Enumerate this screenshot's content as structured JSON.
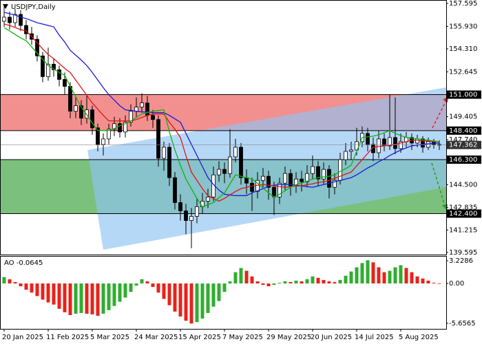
{
  "chart_data": [
    {
      "type": "candlestick",
      "title": "USDJPY,Daily",
      "categories": [
        "20 Jan 2025",
        null,
        null,
        null,
        null,
        null,
        null,
        null,
        "11 Feb 2025",
        null,
        null,
        null,
        null,
        null,
        null,
        null,
        "5 Mar 2025",
        null,
        null,
        null,
        null,
        null,
        null,
        null,
        "24 Mar 2025",
        null,
        null,
        null,
        null,
        null,
        null,
        null,
        "15 Apr 2025",
        null,
        null,
        null,
        null,
        null,
        null,
        null,
        "7 May 2025",
        null,
        null,
        null,
        null,
        null,
        null,
        null,
        "29 May 2025",
        null,
        null,
        null,
        null,
        null,
        null,
        null,
        "20 Jun 2025",
        null,
        null,
        null,
        null,
        null,
        null,
        null,
        "14 Jul 2025",
        null,
        null,
        null,
        null,
        null,
        null,
        null,
        "5 Aug 2025",
        null,
        null,
        null,
        null,
        null,
        null,
        null
      ],
      "open": [
        156.3,
        156.6,
        156.2,
        156.8,
        156.0,
        155.4,
        155.0,
        153.8,
        152.3,
        153.2,
        152.8,
        152.1,
        151.6,
        149.8,
        150.2,
        149.3,
        149.9,
        148.6,
        147.4,
        147.8,
        148.5,
        148.9,
        148.3,
        149.0,
        149.8,
        150.1,
        150.4,
        149.5,
        149.2,
        146.4,
        147.2,
        145.0,
        143.2,
        142.6,
        141.9,
        142.2,
        142.9,
        143.3,
        143.6,
        145.2,
        145.6,
        145.3,
        146.5,
        147.2,
        145.0,
        144.6,
        144.0,
        144.8,
        145.1,
        144.3,
        143.6,
        144.6,
        145.3,
        144.4,
        144.9,
        144.7,
        145.3,
        145.8,
        144.9,
        145.6,
        144.3,
        144.8,
        146.3,
        146.9,
        147.0,
        147.6,
        148.2,
        147.4,
        146.8,
        147.8,
        147.3,
        147.9,
        147.1,
        147.6,
        147.9,
        147.5,
        147.8,
        147.2,
        147.6,
        147.4
      ],
      "high": [
        157.5,
        157.0,
        157.2,
        157.1,
        156.4,
        155.9,
        155.3,
        154.1,
        154.4,
        153.6,
        153.1,
        152.6,
        151.9,
        150.8,
        150.6,
        150.9,
        150.2,
        148.9,
        148.2,
        148.9,
        149.4,
        149.3,
        149.5,
        150.3,
        150.8,
        151.1,
        150.9,
        149.9,
        149.5,
        147.6,
        147.5,
        145.4,
        143.8,
        143.1,
        142.8,
        143.5,
        143.9,
        144.2,
        145.8,
        146.2,
        146.1,
        148.5,
        147.8,
        147.5,
        145.6,
        145.0,
        145.4,
        145.7,
        145.5,
        144.7,
        145.0,
        145.8,
        145.6,
        145.4,
        145.5,
        145.9,
        146.6,
        146.2,
        146.1,
        145.9,
        145.3,
        146.8,
        147.5,
        147.6,
        148.6,
        148.7,
        148.6,
        147.9,
        148.4,
        148.2,
        151.0,
        150.8,
        148.2,
        148.3,
        148.2,
        148.1,
        148.0,
        147.9,
        147.8,
        147.7
      ],
      "low": [
        155.9,
        155.7,
        155.9,
        155.6,
        155.0,
        154.6,
        153.4,
        151.9,
        152.0,
        152.3,
        151.6,
        151.0,
        149.3,
        149.3,
        148.8,
        148.9,
        148.1,
        146.9,
        146.6,
        147.4,
        148.0,
        147.9,
        147.9,
        148.7,
        149.4,
        149.7,
        149.1,
        148.6,
        145.8,
        145.5,
        144.4,
        142.7,
        141.9,
        140.9,
        139.9,
        141.7,
        142.4,
        142.8,
        143.3,
        144.7,
        144.6,
        145.0,
        146.1,
        144.5,
        143.8,
        142.6,
        143.5,
        144.2,
        143.4,
        142.3,
        143.1,
        144.1,
        143.7,
        143.9,
        144.0,
        144.3,
        144.9,
        144.4,
        144.5,
        143.5,
        143.8,
        144.5,
        145.9,
        146.3,
        146.6,
        147.2,
        146.9,
        146.2,
        146.4,
        146.9,
        147.0,
        146.7,
        146.8,
        147.2,
        147.0,
        147.2,
        146.8,
        147.0,
        147.1,
        147.0
      ],
      "close": [
        156.6,
        156.2,
        156.8,
        156.0,
        155.4,
        155.0,
        153.8,
        152.3,
        153.2,
        152.8,
        152.1,
        151.6,
        149.8,
        150.2,
        149.3,
        149.9,
        148.6,
        147.4,
        147.8,
        148.5,
        148.9,
        148.3,
        149.0,
        149.8,
        150.1,
        150.4,
        149.5,
        149.2,
        146.4,
        147.2,
        145.0,
        143.2,
        142.6,
        141.9,
        142.2,
        142.9,
        143.3,
        143.6,
        145.2,
        145.6,
        145.3,
        146.5,
        147.2,
        145.0,
        144.6,
        144.0,
        144.8,
        145.1,
        144.3,
        143.6,
        144.6,
        145.3,
        144.4,
        144.9,
        144.7,
        145.3,
        145.8,
        144.9,
        145.6,
        144.3,
        144.8,
        146.3,
        146.9,
        147.0,
        147.6,
        148.2,
        147.4,
        146.8,
        147.8,
        147.3,
        147.9,
        147.1,
        147.6,
        147.9,
        147.5,
        147.8,
        147.2,
        147.6,
        147.4,
        147.362
      ],
      "up_color": "#ffffff",
      "down_color": "#000000",
      "lines": [
        {
          "color": "#1a1ad6",
          "values": [
            156.95,
            156.85,
            156.75,
            156.6,
            156.5,
            156.35,
            156.2,
            156.1,
            156.0,
            155.9,
            155.3,
            154.8,
            154.2,
            153.85,
            153.5,
            153.1,
            152.6,
            152.05,
            151.5,
            151.0,
            150.6,
            150.2,
            149.9,
            149.85,
            149.8,
            149.75,
            149.75,
            149.7,
            149.7,
            149.7,
            149.5,
            149.25,
            149.0,
            148.2,
            147.4,
            146.6,
            145.8,
            145.0,
            144.5,
            144.1,
            143.8,
            143.75,
            143.7,
            143.7,
            143.7,
            143.9,
            144.05,
            144.2,
            144.4,
            144.45,
            144.5,
            144.5,
            144.5,
            144.45,
            144.4,
            144.35,
            144.3,
            144.4,
            144.5,
            144.6,
            144.7,
            144.8,
            144.9,
            145.0,
            145.2,
            145.45,
            145.7,
            145.9,
            146.15,
            146.35,
            146.6,
            146.8,
            147.0,
            147.15,
            147.3,
            147.35,
            147.4,
            147.45,
            147.48,
            147.5
          ]
        },
        {
          "color": "#e01414",
          "values": [
            156.1,
            156.0,
            155.85,
            155.7,
            155.6,
            155.2,
            154.75,
            154.3,
            153.9,
            153.6,
            153.25,
            152.9,
            152.6,
            152.05,
            151.5,
            150.95,
            150.4,
            149.95,
            149.5,
            149.1,
            149.1,
            149.1,
            149.1,
            149.1,
            149.2,
            149.35,
            149.5,
            149.6,
            149.6,
            149.6,
            149.0,
            148.5,
            147.9,
            146.6,
            145.4,
            144.8,
            144.2,
            143.7,
            143.5,
            143.3,
            143.5,
            143.75,
            144.0,
            144.2,
            144.3,
            144.4,
            144.45,
            144.5,
            144.45,
            144.4,
            144.35,
            144.3,
            144.35,
            144.4,
            144.4,
            144.5,
            144.55,
            144.65,
            144.7,
            144.8,
            144.95,
            145.1,
            145.25,
            145.4,
            145.85,
            146.3,
            146.75,
            147.2,
            147.25,
            147.3,
            147.35,
            147.4,
            147.5,
            147.6,
            147.7,
            147.7,
            147.65,
            147.65,
            147.6,
            147.6
          ]
        },
        {
          "color": "#12b012",
          "values": [
            155.85,
            155.6,
            155.35,
            155.1,
            154.9,
            154.45,
            154.0,
            153.55,
            153.1,
            152.85,
            152.6,
            152.4,
            151.6,
            150.85,
            150.1,
            149.55,
            148.95,
            148.4,
            148.4,
            148.4,
            148.55,
            148.75,
            148.9,
            149.1,
            149.35,
            149.6,
            149.7,
            149.8,
            149.85,
            149.9,
            148.3,
            147.0,
            145.9,
            144.9,
            144.2,
            143.5,
            142.9,
            143.05,
            143.2,
            143.55,
            143.9,
            144.55,
            145.2,
            145.1,
            145.0,
            144.9,
            144.6,
            144.25,
            143.9,
            143.6,
            143.8,
            144.05,
            144.3,
            144.5,
            144.6,
            144.75,
            144.9,
            145.0,
            145.05,
            145.1,
            145.2,
            145.45,
            145.65,
            145.9,
            146.9,
            147.9,
            147.95,
            148.0,
            148.1,
            148.25,
            148.4,
            148.2,
            148.05,
            147.9,
            147.85,
            147.8,
            147.75,
            147.7,
            147.65,
            147.6
          ]
        }
      ],
      "levels": [
        {
          "value": 151.0,
          "label": "151.000"
        },
        {
          "value": 148.4,
          "label": "148.400"
        },
        {
          "value": 146.3,
          "label": "146.300"
        },
        {
          "value": 142.4,
          "label": "142.400"
        }
      ],
      "zones": [
        {
          "from": 148.4,
          "to": 151.0,
          "color": "#f29090"
        },
        {
          "from": 142.4,
          "to": 146.3,
          "color": "#7cc07e"
        }
      ],
      "last_price": {
        "value": 147.362,
        "label": "147.362"
      },
      "ylim": [
        139.44,
        157.84
      ],
      "yticks": [
        157.595,
        {
          "value": 155.93,
          "label": "155.930"
        },
        {
          "value": 154.31,
          "label": "154.310"
        },
        152.645,
        149.405,
        {
          "value": 147.74,
          "label": "147.740"
        },
        {
          "value": 144.5,
          "label": "144.500"
        },
        142.835,
        141.215,
        139.595
      ],
      "grid": false
    },
    {
      "type": "histogram",
      "title": "AO -0.0645",
      "values": [
        0.9,
        0.6,
        0.2,
        -0.4,
        -0.9,
        -1.3,
        -1.8,
        -2.3,
        -2.7,
        -3.0,
        -3.6,
        -4.1,
        -4.5,
        -4.3,
        -4.2,
        -4.3,
        -4.4,
        -4.6,
        -4.3,
        -3.8,
        -3.2,
        -2.6,
        -2.0,
        -1.2,
        -0.3,
        0.6,
        0.3,
        -0.5,
        -1.3,
        -2.2,
        -3.1,
        -4.0,
        -4.7,
        -5.3,
        -5.7,
        -5.5,
        -5.0,
        -4.2,
        -3.3,
        -2.5,
        -1.2,
        0.3,
        1.6,
        2.2,
        1.8,
        1.0,
        0.3,
        -0.2,
        -0.4,
        -0.2,
        0.1,
        0.3,
        0.2,
        0.4,
        0.3,
        0.6,
        1.0,
        0.8,
        0.5,
        0.3,
        0.2,
        0.5,
        1.1,
        1.7,
        2.3,
        2.9,
        3.3,
        3.0,
        2.3,
        1.6,
        1.8,
        2.3,
        2.6,
        2.2,
        1.6,
        1.0,
        0.7,
        0.4,
        0.1,
        -0.0645
      ],
      "up_color": "#2fae2f",
      "down_color": "#e8231a",
      "ylim": [
        -6.458,
        3.816
      ],
      "yticks": [
        3.2286,
        {
          "value": 0,
          "label": "0.00"
        },
        -5.6565
      ],
      "grid": false
    }
  ]
}
